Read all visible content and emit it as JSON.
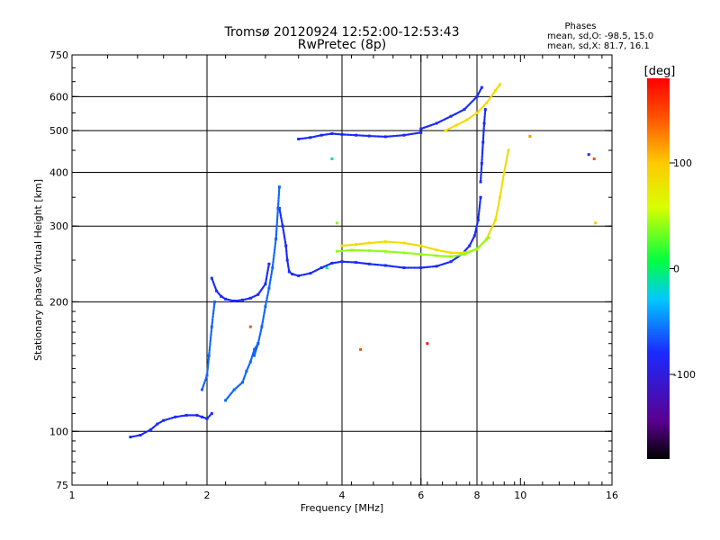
{
  "chart_data": {
    "type": "scatter",
    "title": "Tromsø 20120924 12:52:00-12:53:43",
    "subtitle": "RwPretec (8p)",
    "phase_box": {
      "heading": "Phases",
      "line1": "mean, sd,O: -98.5, 15.0",
      "line2": "mean, sd,X:  81.7, 16.1"
    },
    "xlabel": "Frequency [MHz]",
    "ylabel": "Stationary phase Virtual Height [km]",
    "x_scale": "log",
    "y_scale": "log",
    "xlim": [
      1,
      16
    ],
    "ylim": [
      75,
      750
    ],
    "x_ticks": [
      1,
      2,
      4,
      6,
      8,
      10,
      16
    ],
    "y_ticks": [
      75,
      100,
      200,
      300,
      400,
      500,
      600,
      750
    ],
    "grid_x": [
      2,
      4,
      6,
      8
    ],
    "grid_y": [
      100,
      200,
      300,
      400,
      500,
      600
    ],
    "colorbar": {
      "label": "[deg]",
      "range": [
        -180,
        180
      ],
      "ticks": [
        100,
        0,
        -100
      ],
      "colormap": "rainbow (black-purple-blue-cyan-green-yellow-red)"
    },
    "series": [
      {
        "phase_deg": -100,
        "segments": [
          {
            "x": [
              1.35,
              1.42,
              1.5,
              1.55,
              1.6,
              1.7,
              1.8,
              1.9,
              1.95,
              2.0,
              2.05
            ],
            "y": [
              97,
              98,
              101,
              104,
              106,
              108,
              109,
              109,
              108,
              107,
              110
            ]
          },
          {
            "x": [
              2.05,
              2.1,
              2.15,
              2.2,
              2.3,
              2.4,
              2.5,
              2.6,
              2.7,
              2.75
            ],
            "y": [
              227,
              212,
              206,
              203,
              201,
              202,
              204,
              208,
              220,
              245
            ]
          },
          {
            "x": [
              2.9,
              2.95,
              3.0,
              3.02,
              3.05,
              3.1,
              3.2,
              3.4,
              3.6,
              3.8,
              4.0,
              4.3,
              4.6,
              5.0,
              5.5,
              6.0,
              6.5,
              7.0,
              7.4,
              7.7,
              7.9,
              8.05,
              8.15
            ],
            "y": [
              330,
              300,
              270,
              250,
              235,
              232,
              230,
              233,
              240,
              246,
              248,
              247,
              245,
              243,
              240,
              240,
              242,
              248,
              258,
              270,
              285,
              310,
              350
            ]
          },
          {
            "x": [
              8.15,
              8.2,
              8.25,
              8.3,
              8.35
            ],
            "y": [
              380,
              420,
              470,
              520,
              560
            ]
          },
          {
            "x": [
              3.2,
              3.4,
              3.6,
              3.8,
              4.0,
              4.3,
              4.6,
              5.0,
              5.5,
              6.0
            ],
            "y": [
              478,
              482,
              488,
              492,
              490,
              488,
              486,
              484,
              488,
              495
            ]
          },
          {
            "x": [
              6.0,
              6.5,
              7.0,
              7.5,
              8.0,
              8.2
            ],
            "y": [
              505,
              520,
              540,
              560,
              600,
              630
            ]
          }
        ]
      },
      {
        "phase_deg": -85,
        "segments": [
          {
            "x": [
              2.55,
              2.6,
              2.65,
              2.7,
              2.75,
              2.8,
              2.85,
              2.88,
              2.9
            ],
            "y": [
              150,
              160,
              175,
              195,
              215,
              240,
              280,
              330,
              370
            ]
          },
          {
            "x": [
              2.2,
              2.3,
              2.4,
              2.45,
              2.5,
              2.55,
              2.6
            ],
            "y": [
              118,
              125,
              130,
              138,
              145,
              155,
              160
            ]
          },
          {
            "x": [
              1.95,
              2.0,
              2.02,
              2.05,
              2.08
            ],
            "y": [
              125,
              135,
              150,
              175,
              200
            ]
          }
        ]
      },
      {
        "phase_deg": 85,
        "segments": [
          {
            "x": [
              4.0,
              4.3,
              4.6,
              5.0,
              5.5,
              6.0,
              6.5,
              7.0,
              7.5,
              8.0,
              8.4,
              8.8,
              9.0,
              9.2,
              9.4
            ],
            "y": [
              270,
              272,
              274,
              276,
              274,
              270,
              264,
              260,
              260,
              265,
              280,
              310,
              350,
              400,
              450
            ]
          },
          {
            "x": [
              6.8,
              7.2,
              7.6,
              8.0,
              8.4,
              8.8,
              9.0
            ],
            "y": [
              500,
              515,
              530,
              550,
              580,
              620,
              640
            ]
          }
        ]
      },
      {
        "phase_deg": 40,
        "segments": [
          {
            "x": [
              3.9,
              4.2,
              4.6,
              5.0,
              5.5,
              6.0,
              6.5,
              7.0,
              7.5,
              8.0,
              8.5
            ],
            "y": [
              262,
              264,
              263,
              262,
              260,
              258,
              256,
              255,
              258,
              266,
              282
            ]
          }
        ]
      }
    ],
    "isolated_points": [
      {
        "x": 3.8,
        "y": 430,
        "phase_deg": -40
      },
      {
        "x": 3.9,
        "y": 305,
        "phase_deg": 40
      },
      {
        "x": 3.7,
        "y": 240,
        "phase_deg": -20
      },
      {
        "x": 4.4,
        "y": 155,
        "phase_deg": 150
      },
      {
        "x": 6.2,
        "y": 160,
        "phase_deg": 170
      },
      {
        "x": 10.5,
        "y": 485,
        "phase_deg": 120
      },
      {
        "x": 14.2,
        "y": 440,
        "phase_deg": -100
      },
      {
        "x": 14.6,
        "y": 430,
        "phase_deg": 150
      },
      {
        "x": 14.7,
        "y": 305,
        "phase_deg": 100
      },
      {
        "x": 2.5,
        "y": 175,
        "phase_deg": 150
      }
    ]
  }
}
